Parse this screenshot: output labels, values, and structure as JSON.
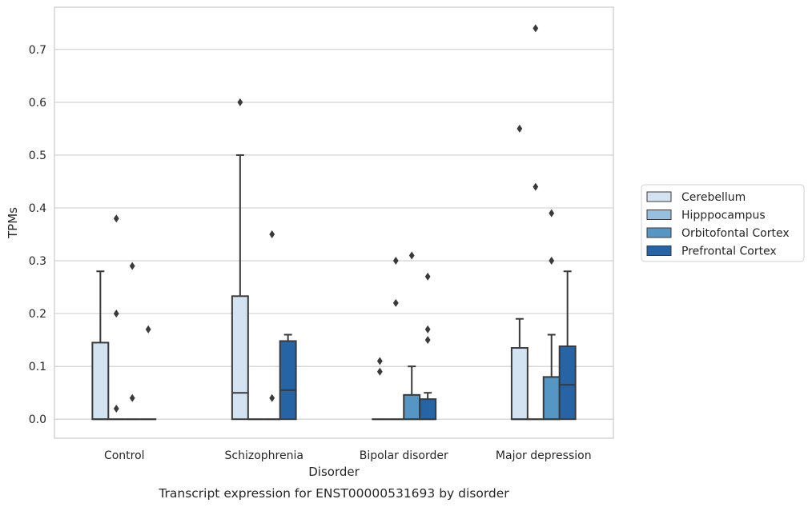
{
  "chart_data": {
    "type": "box",
    "title": "",
    "caption": "Transcript expression for ENST00000531693 by disorder",
    "xlabel": "Disorder",
    "ylabel": "TPMs",
    "ylim": [
      -0.036,
      0.78
    ],
    "yticks": [
      0.0,
      0.1,
      0.2,
      0.3,
      0.4,
      0.5,
      0.6,
      0.7
    ],
    "ytick_labels": [
      "0.0",
      "0.1",
      "0.2",
      "0.3",
      "0.4",
      "0.5",
      "0.6",
      "0.7"
    ],
    "grid": true,
    "legend_position": "right",
    "categories": [
      "Control",
      "Schizophrenia",
      "Bipolar disorder",
      "Major depression"
    ],
    "series": [
      {
        "name": "Cerebellum",
        "color": "#d4e3f1",
        "boxes": [
          {
            "q1": 0.0,
            "median": 0.0,
            "q3": 0.145,
            "whisker_low": 0.0,
            "whisker_high": 0.28,
            "outliers": []
          },
          {
            "q1": 0.0,
            "median": 0.05,
            "q3": 0.233,
            "whisker_low": 0.0,
            "whisker_high": 0.5,
            "outliers": [
              0.6
            ]
          },
          {
            "q1": 0.0,
            "median": 0.0,
            "q3": 0.0,
            "whisker_low": 0.0,
            "whisker_high": 0.0,
            "outliers": [
              0.11,
              0.09
            ]
          },
          {
            "q1": 0.0,
            "median": 0.0,
            "q3": 0.135,
            "whisker_low": 0.0,
            "whisker_high": 0.19,
            "outliers": [
              0.55
            ]
          }
        ]
      },
      {
        "name": "Hipppocampus",
        "color": "#98c0de",
        "boxes": [
          {
            "q1": 0.0,
            "median": 0.0,
            "q3": 0.0,
            "whisker_low": 0.0,
            "whisker_high": 0.0,
            "outliers": [
              0.38,
              0.2,
              0.02
            ]
          },
          {
            "q1": 0.0,
            "median": 0.0,
            "q3": 0.0,
            "whisker_low": 0.0,
            "whisker_high": 0.0,
            "outliers": []
          },
          {
            "q1": 0.0,
            "median": 0.0,
            "q3": 0.0,
            "whisker_low": 0.0,
            "whisker_high": 0.0,
            "outliers": [
              0.3,
              0.22
            ]
          },
          {
            "q1": 0.0,
            "median": 0.0,
            "q3": 0.0,
            "whisker_low": 0.0,
            "whisker_high": 0.0,
            "outliers": [
              0.74,
              0.44
            ]
          }
        ]
      },
      {
        "name": "Orbitofontal Cortex",
        "color": "#5596c5",
        "boxes": [
          {
            "q1": 0.0,
            "median": 0.0,
            "q3": 0.0,
            "whisker_low": 0.0,
            "whisker_high": 0.0,
            "outliers": [
              0.29,
              0.04
            ]
          },
          {
            "q1": 0.0,
            "median": 0.0,
            "q3": 0.0,
            "whisker_low": 0.0,
            "whisker_high": 0.0,
            "outliers": [
              0.35,
              0.04
            ]
          },
          {
            "q1": 0.0,
            "median": 0.0,
            "q3": 0.046,
            "whisker_low": 0.0,
            "whisker_high": 0.1,
            "outliers": [
              0.31
            ]
          },
          {
            "q1": 0.0,
            "median": 0.0,
            "q3": 0.08,
            "whisker_low": 0.0,
            "whisker_high": 0.16,
            "outliers": [
              0.39,
              0.3
            ]
          }
        ]
      },
      {
        "name": "Prefrontal Cortex",
        "color": "#2664a6",
        "boxes": [
          {
            "q1": 0.0,
            "median": 0.0,
            "q3": 0.0,
            "whisker_low": 0.0,
            "whisker_high": 0.0,
            "outliers": [
              0.17
            ]
          },
          {
            "q1": 0.0,
            "median": 0.055,
            "q3": 0.148,
            "whisker_low": 0.0,
            "whisker_high": 0.16,
            "outliers": []
          },
          {
            "q1": 0.0,
            "median": 0.0,
            "q3": 0.038,
            "whisker_low": 0.0,
            "whisker_high": 0.05,
            "outliers": [
              0.27,
              0.17,
              0.15
            ]
          },
          {
            "q1": 0.0,
            "median": 0.065,
            "q3": 0.138,
            "whisker_low": 0.0,
            "whisker_high": 0.28,
            "outliers": []
          }
        ]
      }
    ]
  }
}
